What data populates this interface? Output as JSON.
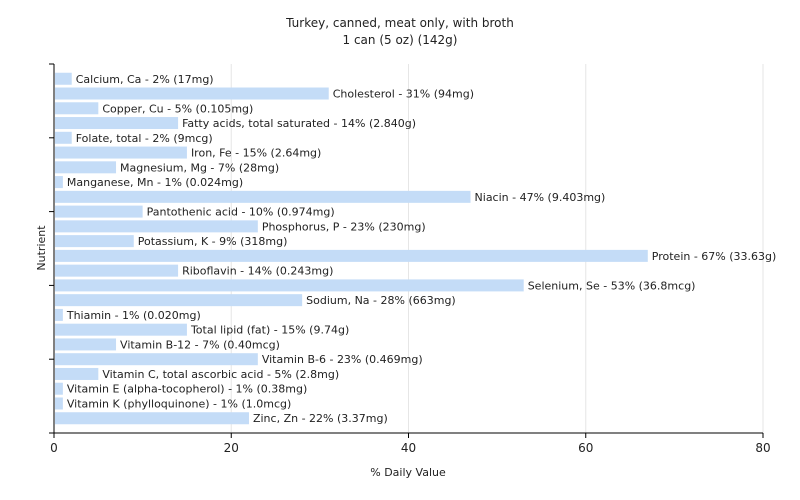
{
  "chart_data": {
    "type": "bar",
    "orientation": "horizontal",
    "title": "Turkey, canned, meat only, with broth",
    "subtitle": "1 can (5 oz) (142g)",
    "xlabel": "% Daily Value",
    "ylabel": "Nutrient",
    "xlim": [
      0,
      80
    ],
    "xticks": [
      0,
      20,
      40,
      60,
      80
    ],
    "grid": true,
    "bar_color": "#c4dcf7",
    "categories": [
      "Calcium, Ca",
      "Cholesterol",
      "Copper, Cu",
      "Fatty acids, total saturated",
      "Folate, total",
      "Iron, Fe",
      "Magnesium, Mg",
      "Manganese, Mn",
      "Niacin",
      "Pantothenic acid",
      "Phosphorus, P",
      "Potassium, K",
      "Protein",
      "Riboflavin",
      "Selenium, Se",
      "Sodium, Na",
      "Thiamin",
      "Total lipid (fat)",
      "Vitamin B-12",
      "Vitamin B-6",
      "Vitamin C, total ascorbic acid",
      "Vitamin E (alpha-tocopherol)",
      "Vitamin K (phylloquinone)",
      "Zinc, Zn"
    ],
    "values": [
      2,
      31,
      5,
      14,
      2,
      15,
      7,
      1,
      47,
      10,
      23,
      9,
      67,
      14,
      53,
      28,
      1,
      15,
      7,
      23,
      5,
      1,
      1,
      22
    ],
    "labels": [
      "Calcium, Ca - 2% (17mg)",
      "Cholesterol - 31% (94mg)",
      "Copper, Cu - 5% (0.105mg)",
      "Fatty acids, total saturated - 14% (2.840g)",
      "Folate, total - 2% (9mcg)",
      "Iron, Fe - 15% (2.64mg)",
      "Magnesium, Mg - 7% (28mg)",
      "Manganese, Mn - 1% (0.024mg)",
      "Niacin - 47% (9.403mg)",
      "Pantothenic acid - 10% (0.974mg)",
      "Phosphorus, P - 23% (230mg)",
      "Potassium, K - 9% (318mg)",
      "Protein - 67% (33.63g)",
      "Riboflavin - 14% (0.243mg)",
      "Selenium, Se - 53% (36.8mcg)",
      "Sodium, Na - 28% (663mg)",
      "Thiamin - 1% (0.020mg)",
      "Total lipid (fat) - 15% (9.74g)",
      "Vitamin B-12 - 7% (0.40mcg)",
      "Vitamin B-6 - 23% (0.469mg)",
      "Vitamin C, total ascorbic acid - 5% (2.8mg)",
      "Vitamin E (alpha-tocopherol) - 1% (0.38mg)",
      "Vitamin K (phylloquinone) - 1% (1.0mcg)",
      "Zinc, Zn - 22% (3.37mg)"
    ]
  }
}
